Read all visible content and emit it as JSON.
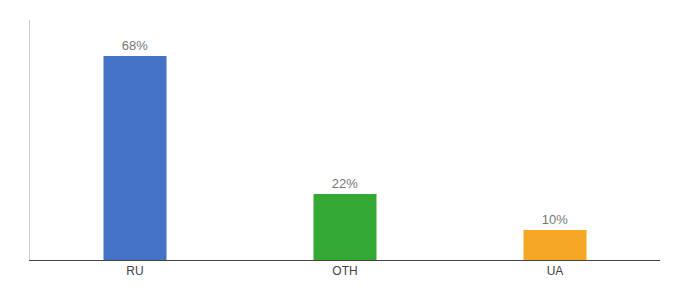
{
  "chart_data": {
    "type": "bar",
    "categories": [
      "RU",
      "OTH",
      "UA"
    ],
    "values": [
      68,
      22,
      10
    ],
    "value_labels": [
      "68%",
      "22%",
      "10%"
    ],
    "colors": [
      "#4472c4",
      "#33a832",
      "#f5a623"
    ],
    "ylim": [
      0,
      80
    ],
    "grid": false,
    "data_labels": true,
    "tick_labels": "x"
  }
}
